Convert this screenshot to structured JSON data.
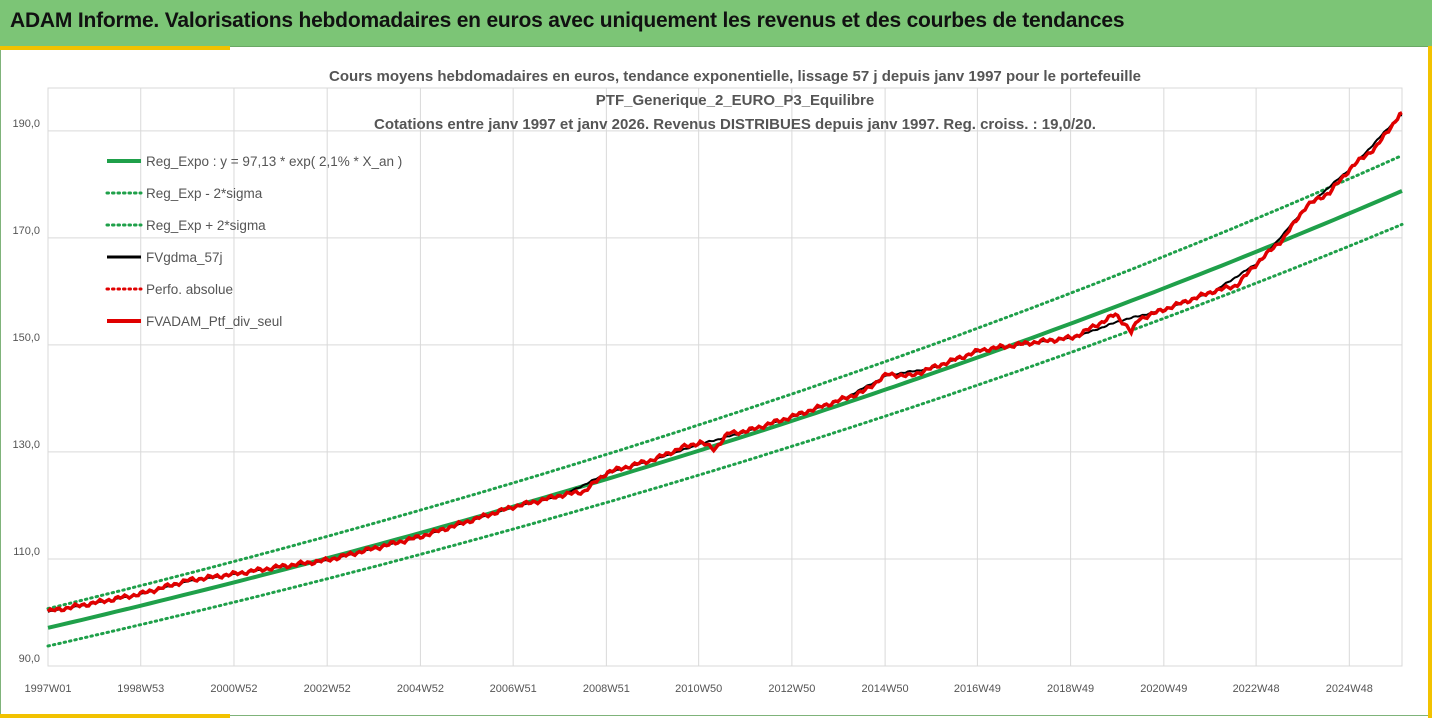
{
  "header": {
    "title": "ADAM Informe. Valorisations hebdomadaires en euros avec uniquement les revenus et des courbes de tendances"
  },
  "colors": {
    "header_bg": "#7cc576",
    "accent": "#f2c200",
    "reg_expo": "#1fa04a",
    "bands": "#1fa04a",
    "fvgdma": "#000000",
    "perf_absolue": "#e00000",
    "fvadam": "#e00000"
  },
  "chart_data": {
    "type": "line",
    "title_lines": [
      "Cours moyens hebdomadaires  en euros, tendance exponentielle, lissage 57 j depuis janv 1997 pour le portefeuille",
      "PTF_Generique_2_EURO_P3_Equilibre",
      "Cotations entre janv 1997 et janv 2026. Revenus DISTRIBUES depuis janv 1997. Reg. croiss. : 19,0/20."
    ],
    "ylim": [
      90,
      198
    ],
    "y_ticks": [
      90,
      110,
      130,
      150,
      170,
      190
    ],
    "y_tick_labels": [
      "90,0",
      "110,0",
      "130,0",
      "150,0",
      "170,0",
      "190,0"
    ],
    "xlim": [
      1997.0,
      2026.05
    ],
    "x_ticks": [
      1997.0,
      1998.99,
      2000.99,
      2002.99,
      2004.99,
      2006.98,
      2008.98,
      2010.96,
      2012.96,
      2014.96,
      2016.94,
      2018.94,
      2020.94,
      2022.92,
      2024.92
    ],
    "x_tick_labels": [
      "1997W01",
      "1998W53",
      "2000W52",
      "2002W52",
      "2004W52",
      "2006W51",
      "2008W51",
      "2010W50",
      "2012W50",
      "2014W50",
      "2016W49",
      "2018W49",
      "2020W49",
      "2022W48",
      "2024W48"
    ],
    "legend": [
      {
        "label": "Reg_Expo : y = 97,13 * exp( 2,1% *  X_an )",
        "style": "solid-thick",
        "color": "#1fa04a"
      },
      {
        "label": "Reg_Exp - 2*sigma",
        "style": "dotted",
        "color": "#1fa04a"
      },
      {
        "label": "Reg_Exp + 2*sigma",
        "style": "dotted",
        "color": "#1fa04a"
      },
      {
        "label": "FVgdma_57j",
        "style": "solid",
        "color": "#000000"
      },
      {
        "label": "Perfo. absolue",
        "style": "dotted",
        "color": "#e00000"
      },
      {
        "label": "FVADAM_Ptf_div_seul",
        "style": "solid-thick",
        "color": "#e00000"
      }
    ],
    "regression": {
      "a": 97.13,
      "rate": 0.021,
      "lower_factor": 0.965,
      "upper_factor": 1.037
    },
    "series": [
      {
        "name": "FVADAM_Ptf_div_seul",
        "x": [
          1997.0,
          1998.0,
          1999.0,
          2000.0,
          2001.0,
          2002.0,
          2003.0,
          2004.0,
          2005.0,
          2006.0,
          2007.0,
          2007.5,
          2008.0,
          2008.5,
          2009.0,
          2010.0,
          2010.6,
          2011.0,
          2011.3,
          2011.6,
          2012.0,
          2013.0,
          2014.0,
          2014.5,
          2015.0,
          2015.5,
          2016.0,
          2017.0,
          2018.0,
          2019.0,
          2019.6,
          2019.9,
          2020.2,
          2020.22,
          2020.4,
          2021.0,
          2022.0,
          2022.5,
          2023.0,
          2023.5,
          2024.0,
          2024.5,
          2024.8,
          2025.0,
          2025.5,
          2026.0
        ],
        "values": [
          100.2,
          101.8,
          103.5,
          106.0,
          107.2,
          108.6,
          109.8,
          112.0,
          114.2,
          117.0,
          119.8,
          120.8,
          121.9,
          122.6,
          126.2,
          128.6,
          130.8,
          131.8,
          130.5,
          133.5,
          133.9,
          136.7,
          139.7,
          141.3,
          144.5,
          144.2,
          145.8,
          149.0,
          150.3,
          151.4,
          154.2,
          155.7,
          153.0,
          152.0,
          154.8,
          156.8,
          160.0,
          161.1,
          165.8,
          169.8,
          176.0,
          178.5,
          181.5,
          183.5,
          187.0,
          193.0
        ]
      },
      {
        "name": "FVgdma_57j",
        "x": [
          1997.0,
          1998.0,
          1999.0,
          2000.0,
          2001.0,
          2002.0,
          2003.0,
          2004.0,
          2005.0,
          2006.0,
          2007.0,
          2008.0,
          2009.0,
          2010.0,
          2011.0,
          2012.0,
          2013.0,
          2014.0,
          2015.0,
          2016.0,
          2017.0,
          2018.0,
          2019.0,
          2020.0,
          2021.0,
          2022.0,
          2023.0,
          2024.0,
          2025.0,
          2026.0
        ],
        "values": [
          100.1,
          101.7,
          103.4,
          105.8,
          107.1,
          108.5,
          109.7,
          111.9,
          114.1,
          116.9,
          119.7,
          121.7,
          126.0,
          128.5,
          131.5,
          133.8,
          136.6,
          139.6,
          144.3,
          145.7,
          148.9,
          150.2,
          151.3,
          154.5,
          156.7,
          159.9,
          165.6,
          175.8,
          183.4,
          192.8
        ]
      }
    ]
  }
}
